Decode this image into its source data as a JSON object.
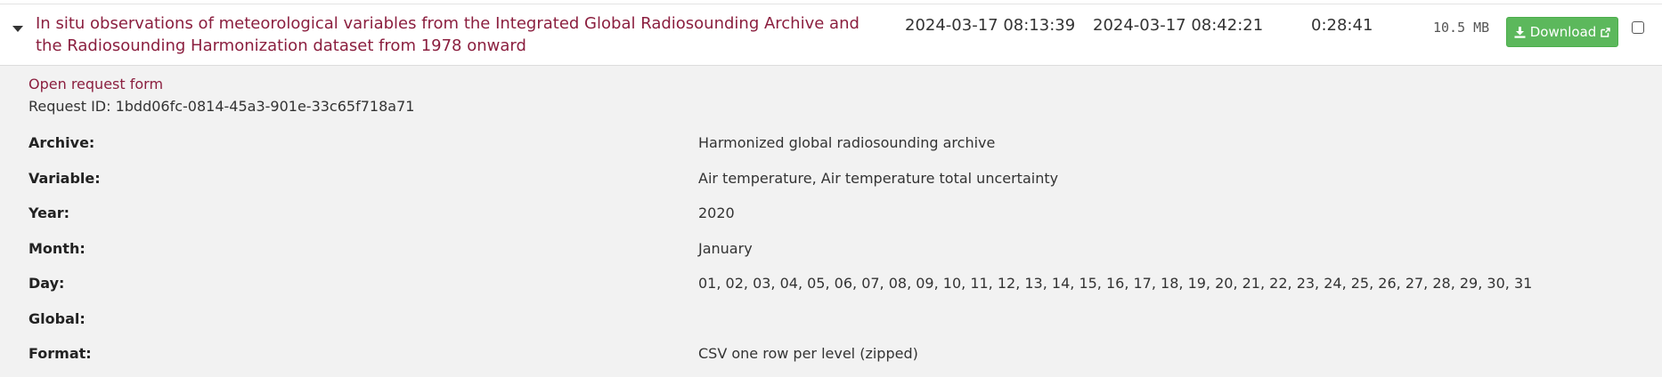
{
  "request": {
    "title": "In situ observations of meteorological variables from the Integrated Global Radiosounding Archive and the Radiosounding Harmonization dataset from 1978 onward",
    "submitted": "2024-03-17 08:13:39",
    "completed": "2024-03-17 08:42:21",
    "duration": "0:28:41",
    "size": "10.5 MB",
    "download_label": "Download",
    "open_form_label": "Open request form",
    "request_id_text": "Request ID: 1bdd06fc-0814-45a3-901e-33c65f718a71"
  },
  "fields": [
    {
      "label": "Archive:",
      "value": "Harmonized global radiosounding archive"
    },
    {
      "label": "Variable:",
      "value": "Air temperature, Air temperature total uncertainty"
    },
    {
      "label": "Year:",
      "value": "2020"
    },
    {
      "label": "Month:",
      "value": "January"
    },
    {
      "label": "Day:",
      "value": "01, 02, 03, 04, 05, 06, 07, 08, 09, 10, 11, 12, 13, 14, 15, 16, 17, 18, 19, 20, 21, 22, 23, 24, 25, 26, 27, 28, 29, 30, 31"
    },
    {
      "label": "Global:",
      "value": ""
    },
    {
      "label": "Format:",
      "value": "CSV one row per level (zipped)"
    }
  ],
  "icons": {
    "caret": "caret-down-icon",
    "download": "download-icon",
    "external": "external-link-icon"
  },
  "colors": {
    "link": "#8b1f3f",
    "button": "#5cb85c",
    "details_bg": "#f2f2f2"
  }
}
